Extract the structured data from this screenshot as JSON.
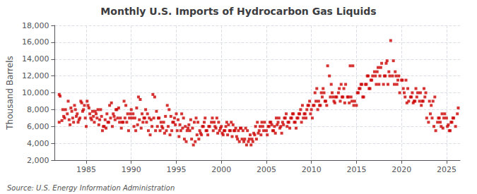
{
  "chart_data": {
    "type": "scatter",
    "title": "Monthly U.S. Imports of Hydrocarbon Gas Liquids",
    "ylabel": "Thousand Barrels",
    "annotation": "Source: U.S. Energy Information Administration",
    "color": "#cc0000",
    "marker": "square",
    "grid": true,
    "xlim": [
      1981.5,
      2026.5
    ],
    "xticks": [
      1985,
      1990,
      1995,
      2000,
      2005,
      2010,
      2015,
      2020,
      2025
    ],
    "ylim": [
      2000,
      18000
    ],
    "yticks": [
      {
        "value": 2000,
        "label": "2,000"
      },
      {
        "value": 4000,
        "label": "4,000"
      },
      {
        "value": 6000,
        "label": "6,000"
      },
      {
        "value": 8000,
        "label": "8,000"
      },
      {
        "value": 10000,
        "label": "10,000"
      },
      {
        "value": 12000,
        "label": "12,000"
      },
      {
        "value": 14000,
        "label": "14,000"
      },
      {
        "value": 16000,
        "label": "16,000"
      },
      {
        "value": 18000,
        "label": "18,000"
      }
    ],
    "x": [
      1982.0,
      1982.1,
      1982.3,
      1982.5,
      1982.7,
      1982.9,
      1983.1,
      1983.3,
      1983.5,
      1983.7,
      1983.9,
      1984.1,
      1984.3,
      1984.5,
      1984.7,
      1984.9,
      1985.0,
      1985.2,
      1985.4,
      1985.6,
      1985.8,
      1986.0,
      1986.2,
      1986.4,
      1986.6,
      1986.8,
      1987.0,
      1987.2,
      1987.4,
      1987.6,
      1987.8,
      1988.0,
      1988.2,
      1988.4,
      1988.6,
      1988.8,
      1989.0,
      1989.2,
      1989.4,
      1989.6,
      1989.8,
      1990.0,
      1990.2,
      1990.4,
      1990.6,
      1990.8,
      1991.0,
      1991.2,
      1991.4,
      1991.6,
      1991.8,
      1992.0,
      1992.2,
      1992.4,
      1992.6,
      1992.8,
      1993.0,
      1993.2,
      1993.4,
      1993.6,
      1993.8,
      1994.0,
      1994.2,
      1994.4,
      1994.6,
      1994.8,
      1995.0,
      1995.2,
      1995.4,
      1995.6,
      1995.8,
      1996.0,
      1996.2,
      1996.4,
      1996.6,
      1996.8,
      1997.0,
      1997.2,
      1997.4,
      1997.6,
      1997.8,
      1998.0,
      1998.2,
      1998.4,
      1998.6,
      1999.0,
      1999.2,
      1999.4,
      1999.6,
      1999.8,
      2000.0,
      2000.2,
      2000.4,
      2000.6,
      2000.8,
      2001.0,
      2001.2,
      2001.4,
      2001.6,
      2001.8,
      2002.0,
      2002.2,
      2002.4,
      2002.6,
      2002.8,
      2003.0,
      2003.2,
      2003.4,
      2003.6,
      2003.8,
      2004.0,
      2004.2,
      2004.4,
      2004.6,
      2004.8,
      2005.0,
      2005.2,
      2005.4,
      2005.6,
      2005.8,
      2006.0,
      2006.2,
      2006.4,
      2006.6,
      2006.8,
      2007.0,
      2007.2,
      2007.4,
      2007.6,
      2007.8,
      2008.0,
      2008.2,
      2008.4,
      2008.6,
      2008.8,
      2009.0,
      2009.2,
      2009.4,
      2009.6,
      2009.8,
      2010.0,
      2010.2,
      2010.4,
      2010.6,
      2010.8,
      2011.0,
      2011.2,
      2011.4,
      2011.6,
      2011.8,
      2012.0,
      2012.2,
      2012.4,
      2012.6,
      2012.8,
      2013.0,
      2013.2,
      2013.4,
      2013.6,
      2013.8,
      2014.0,
      2014.2,
      2014.4,
      2014.6,
      2014.8,
      2015.0,
      2015.2,
      2015.4,
      2015.6,
      2015.8,
      2016.0,
      2016.2,
      2016.4,
      2016.6,
      2016.8,
      2017.0,
      2017.2,
      2017.4,
      2017.6,
      2017.8,
      2018.0,
      2018.2,
      2018.4,
      2018.6,
      2018.8,
      2019.0,
      2019.2,
      2019.4,
      2019.6,
      2019.8,
      2020.0,
      2020.2,
      2020.4,
      2020.6,
      2020.8,
      2021.0,
      2021.2,
      2021.4,
      2021.6,
      2021.8,
      2022.0,
      2022.2,
      2022.4,
      2022.6,
      2022.8,
      2023.0,
      2023.2,
      2023.4,
      2023.6,
      2023.8,
      2024.0,
      2024.2,
      2024.4,
      2024.6,
      2024.8,
      2025.0,
      2025.2,
      2025.4,
      2025.6,
      2025.8,
      2026.0,
      2026.2,
      2026.3,
      1982.0,
      1982.4,
      1982.6,
      1983.0,
      1983.2,
      1983.4,
      1983.6,
      1983.8,
      1984.0,
      1984.2,
      1984.4,
      1984.6,
      1984.8,
      1985.1,
      1985.3,
      1985.5,
      1985.7,
      1985.9,
      1986.1,
      1986.3,
      1986.5,
      1986.7,
      1986.9,
      1987.1,
      1987.3,
      1987.5,
      1987.7,
      1987.9,
      1988.1,
      1988.3,
      1988.5,
      1988.7,
      1988.9,
      1989.1,
      1989.3,
      1989.5,
      1989.7,
      1989.9,
      1990.1,
      1990.3,
      1990.5,
      1990.7,
      1990.9,
      1991.1,
      1991.3,
      1991.5,
      1991.7,
      1991.9,
      1992.1,
      1992.3,
      1992.5,
      1992.7,
      1992.9,
      1993.1,
      1993.3,
      1993.5,
      1993.7,
      1993.9,
      1994.1,
      1994.3,
      1994.5,
      1994.7,
      1994.9,
      1995.1,
      1995.3,
      1995.5,
      1995.7,
      1995.9,
      1996.1,
      1996.3,
      1996.5,
      1996.7,
      1996.9,
      1997.1,
      1997.3,
      1997.5,
      1997.7,
      1997.9,
      1998.1,
      1998.3,
      1998.5,
      1998.7,
      1998.9,
      1999.1,
      1999.3,
      1999.5,
      1999.7,
      1999.9,
      2000.1,
      2000.3,
      2000.5,
      2000.7,
      2000.9,
      2001.1,
      2001.3,
      2001.5,
      2001.7,
      2001.9,
      2002.1,
      2002.3,
      2002.5,
      2002.7,
      2002.9,
      2003.1,
      2003.3,
      2003.5,
      2003.7,
      2003.9,
      2004.1,
      2004.3,
      2004.5,
      2004.7,
      2005.1,
      2005.3,
      2005.5,
      2005.7,
      2005.9,
      2006.1,
      2006.3,
      2006.5,
      2006.7,
      2006.9,
      2007.1,
      2007.3,
      2007.5,
      2007.7,
      2007.9,
      2008.1,
      2008.3,
      2008.5,
      2008.7,
      2008.9,
      2009.1,
      2009.3,
      2009.5,
      2009.7,
      2009.9,
      2010.1,
      2010.3,
      2010.5,
      2010.7,
      2010.9,
      2011.1,
      2011.3,
      2011.5,
      2011.7,
      2012.1,
      2012.3,
      2012.5,
      2012.7,
      2013.1,
      2013.3,
      2013.5,
      2013.7,
      2014.1,
      2014.3,
      2014.5,
      2014.7,
      2015.1,
      2015.3,
      2015.5,
      2015.7,
      2016.1,
      2016.3,
      2016.5,
      2016.7,
      2017.1,
      2017.3,
      2017.5,
      2017.7,
      2018.1,
      2018.3,
      2018.5,
      2018.7,
      2019.1,
      2019.3,
      2019.5,
      2019.7,
      2020.1,
      2020.3,
      2020.5,
      2020.7,
      2021.1,
      2021.3,
      2021.5,
      2021.7,
      2022.1,
      2022.3,
      2022.5,
      2022.7,
      2023.1,
      2023.3,
      2023.5,
      2023.7,
      2024.1,
      2024.3,
      2024.5,
      2024.7,
      2025.1,
      2025.3,
      2025.5,
      2025.7
    ],
    "values": [
      9800,
      9600,
      6700,
      7200,
      8000,
      7500,
      6800,
      8200,
      7000,
      8500,
      7200,
      6500,
      7000,
      8800,
      8000,
      7000,
      6000,
      8500,
      7500,
      6800,
      7200,
      7800,
      7000,
      6200,
      8000,
      5500,
      6000,
      5800,
      6500,
      8500,
      8800,
      7500,
      6800,
      8000,
      8200,
      7000,
      6500,
      9000,
      8500,
      7500,
      7000,
      8000,
      7500,
      7000,
      8200,
      9500,
      9200,
      7500,
      7000,
      8000,
      7500,
      7000,
      6800,
      9800,
      9500,
      7800,
      7000,
      5500,
      6000,
      6500,
      7200,
      8500,
      8000,
      7200,
      6500,
      7000,
      7500,
      6800,
      6200,
      7500,
      7000,
      6000,
      5500,
      6200,
      6800,
      5800,
      6500,
      7000,
      6500,
      5500,
      5000,
      6000,
      7000,
      5500,
      6000,
      7000,
      6500,
      5800,
      5200,
      5500,
      6000,
      5000,
      5500,
      6500,
      6200,
      5500,
      4800,
      5500,
      5800,
      4500,
      4200,
      5800,
      5500,
      4500,
      3800,
      4200,
      5000,
      4500,
      5200,
      6000,
      6500,
      5500,
      5000,
      6000,
      6500,
      5500,
      6000,
      6500,
      6200,
      5500,
      5200,
      6200,
      7000,
      6000,
      6500,
      7000,
      7500,
      6500,
      5800,
      7000,
      7500,
      6500,
      7000,
      7500,
      8000,
      8500,
      7500,
      7000,
      8500,
      9000,
      8000,
      8500,
      10000,
      10500,
      9000,
      8500,
      9500,
      10000,
      9000,
      13200,
      12000,
      11000,
      9500,
      8800,
      9500,
      10000,
      9000,
      9500,
      10500,
      11000,
      9500,
      8800,
      9500,
      13200,
      9000,
      8500,
      10000,
      10500,
      11000,
      9500,
      11000,
      12000,
      10500,
      11500,
      12000,
      12500,
      11000,
      13000,
      12000,
      13500,
      11000,
      12000,
      13800,
      12500,
      16200,
      12000,
      11000,
      12000,
      11500,
      10000,
      11500,
      10500,
      9500,
      8800,
      9000,
      9500,
      10000,
      9000,
      10500,
      10000,
      9000,
      8500,
      9000,
      9500,
      7000,
      6500,
      7500,
      7000,
      6000,
      5500,
      6500,
      7000,
      6000,
      5800,
      7500,
      7000,
      6200,
      5500,
      6500,
      7000,
      6000,
      7500,
      8200,
      6500,
      8000,
      7000,
      9000,
      6200,
      7800,
      6500,
      8000,
      7500,
      6800,
      9000,
      7800,
      8500,
      9000,
      8200,
      7000,
      7800,
      6500,
      7500,
      8000,
      6800,
      7200,
      6000,
      6800,
      7500,
      6500,
      7000,
      6000,
      7200,
      8000,
      7000,
      6500,
      5800,
      6500,
      7000,
      6500,
      5500,
      7500,
      7000,
      6000,
      5500,
      6200,
      6800,
      5800,
      6500,
      7000,
      6500,
      5500,
      5000,
      6000,
      7000,
      5500,
      6000,
      7000,
      6500,
      5800,
      5200,
      5500,
      6000,
      5000,
      5500,
      6500,
      6200,
      5500,
      4800,
      5500,
      5800,
      4500,
      4200,
      5800,
      5500,
      4500,
      3800,
      4200,
      5000,
      4500,
      5200,
      6000,
      6500,
      5500,
      5000,
      6000,
      6500,
      5500,
      6000,
      7000,
      6500,
      5800,
      5200,
      5500,
      6000,
      5000,
      5500,
      6500,
      6200,
      5500,
      4800,
      5500,
      5800,
      4500,
      4200,
      5800,
      5500,
      4500,
      3800,
      4200,
      5000,
      4500,
      5200,
      6000,
      6500,
      5500,
      5000,
      6000,
      6500,
      5500,
      6000,
      7000,
      6500,
      5800,
      5200,
      6200,
      7000,
      6000,
      6500,
      7000,
      7500,
      6500,
      5800,
      7000,
      7500,
      6500,
      7000,
      7500,
      8000,
      8500,
      7500,
      7000,
      8500,
      9000,
      8000,
      8500,
      10000,
      10500,
      9000,
      8500,
      9500,
      10000,
      9000,
      9500,
      10500,
      11000,
      9500,
      8800,
      9500,
      13200,
      9000,
      8500,
      10000,
      10500,
      11000,
      9500,
      11000,
      12000,
      10500,
      11500,
      12000,
      12500,
      11000,
      13000,
      12000,
      13500,
      11000,
      12000,
      13800,
      12500,
      11000,
      12000,
      11500,
      10000,
      11500,
      10500,
      9500,
      8800,
      9000,
      9500,
      10000,
      9000,
      10500,
      10000,
      9000,
      8500,
      9000,
      9500,
      7000,
      6500,
      7500,
      7000,
      6000,
      5500,
      6500,
      7000
    ]
  }
}
